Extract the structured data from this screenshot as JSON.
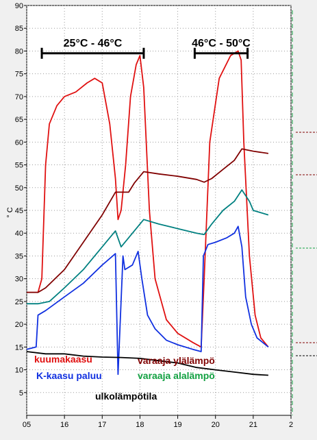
{
  "chart_data": {
    "type": "line",
    "ylabel": "° C",
    "xlim": [
      15,
      22
    ],
    "ylim": [
      0,
      90
    ],
    "x_ticks": [
      "05",
      "16",
      "17",
      "18",
      "19",
      "20",
      "21",
      "2"
    ],
    "y_ticks": [
      "5",
      "10",
      "15",
      "20",
      "25",
      "30",
      "35",
      "40",
      "45",
      "50",
      "55",
      "60",
      "65",
      "70",
      "75",
      "80",
      "85",
      "90"
    ],
    "grid": true,
    "annotations": [
      {
        "text": "25°C - 46°C",
        "from": 15.4,
        "to": 18.1,
        "y": 79.5
      },
      {
        "text": "46°C - 50°C",
        "from": 19.45,
        "to": 20.85,
        "y": 79.5
      }
    ],
    "series": [
      {
        "name": "kuumakaasu",
        "color": "#e01010",
        "points": [
          [
            15.0,
            27
          ],
          [
            15.3,
            27
          ],
          [
            15.4,
            30
          ],
          [
            15.5,
            55
          ],
          [
            15.6,
            64
          ],
          [
            15.8,
            68
          ],
          [
            16.0,
            70
          ],
          [
            16.3,
            71
          ],
          [
            16.6,
            73
          ],
          [
            16.8,
            74
          ],
          [
            17.0,
            73
          ],
          [
            17.2,
            64
          ],
          [
            17.35,
            52
          ],
          [
            17.42,
            43
          ],
          [
            17.5,
            45
          ],
          [
            17.62,
            55
          ],
          [
            17.75,
            70
          ],
          [
            17.9,
            77
          ],
          [
            18.0,
            79
          ],
          [
            18.1,
            72
          ],
          [
            18.25,
            45
          ],
          [
            18.4,
            30
          ],
          [
            18.7,
            21
          ],
          [
            19.0,
            18
          ],
          [
            19.4,
            16
          ],
          [
            19.62,
            15
          ],
          [
            19.7,
            30
          ],
          [
            19.85,
            60
          ],
          [
            20.1,
            74
          ],
          [
            20.4,
            79
          ],
          [
            20.6,
            80
          ],
          [
            20.68,
            78
          ],
          [
            20.75,
            60
          ],
          [
            20.9,
            35
          ],
          [
            21.05,
            22
          ],
          [
            21.2,
            17
          ],
          [
            21.4,
            15
          ]
        ]
      },
      {
        "name": "varaaja ylälämpö",
        "color": "#800000",
        "points": [
          [
            15.0,
            27
          ],
          [
            15.3,
            27
          ],
          [
            15.5,
            28
          ],
          [
            16.0,
            32
          ],
          [
            16.5,
            38
          ],
          [
            17.0,
            44
          ],
          [
            17.35,
            49
          ],
          [
            17.7,
            49
          ],
          [
            17.85,
            51
          ],
          [
            18.1,
            53.5
          ],
          [
            18.5,
            53
          ],
          [
            19.0,
            52.5
          ],
          [
            19.5,
            51.8
          ],
          [
            19.7,
            51.2
          ],
          [
            19.9,
            52
          ],
          [
            20.2,
            54
          ],
          [
            20.5,
            56
          ],
          [
            20.7,
            58.5
          ],
          [
            21.0,
            58
          ],
          [
            21.4,
            57.5
          ]
        ]
      },
      {
        "name": "varaaja alalämpö",
        "color": "#008080",
        "points": [
          [
            15.0,
            24.5
          ],
          [
            15.3,
            24.5
          ],
          [
            15.6,
            25
          ],
          [
            16.0,
            28
          ],
          [
            16.5,
            32
          ],
          [
            17.0,
            37
          ],
          [
            17.35,
            40.5
          ],
          [
            17.5,
            37
          ],
          [
            17.7,
            39
          ],
          [
            18.0,
            42
          ],
          [
            18.1,
            43
          ],
          [
            18.5,
            42
          ],
          [
            19.0,
            41
          ],
          [
            19.5,
            40
          ],
          [
            19.7,
            39.7
          ],
          [
            19.9,
            42
          ],
          [
            20.2,
            45
          ],
          [
            20.5,
            47
          ],
          [
            20.7,
            49.5
          ],
          [
            20.9,
            47
          ],
          [
            21.0,
            45
          ],
          [
            21.4,
            44
          ]
        ]
      },
      {
        "name": "K-kaasu paluu",
        "color": "#1030e0",
        "points": [
          [
            15.0,
            14.5
          ],
          [
            15.25,
            15
          ],
          [
            15.3,
            22
          ],
          [
            15.5,
            23
          ],
          [
            16.0,
            26
          ],
          [
            16.5,
            29
          ],
          [
            17.0,
            33
          ],
          [
            17.35,
            35.5
          ],
          [
            17.42,
            9
          ],
          [
            17.55,
            35
          ],
          [
            17.6,
            32
          ],
          [
            17.8,
            33
          ],
          [
            17.95,
            36
          ],
          [
            18.05,
            30
          ],
          [
            18.2,
            22
          ],
          [
            18.4,
            19
          ],
          [
            18.7,
            16.5
          ],
          [
            19.0,
            15.5
          ],
          [
            19.4,
            14.5
          ],
          [
            19.62,
            14
          ],
          [
            19.68,
            35
          ],
          [
            19.8,
            37.5
          ],
          [
            20.0,
            38
          ],
          [
            20.3,
            39
          ],
          [
            20.5,
            40
          ],
          [
            20.6,
            41.5
          ],
          [
            20.7,
            37
          ],
          [
            20.8,
            26
          ],
          [
            20.95,
            20
          ],
          [
            21.1,
            17
          ],
          [
            21.4,
            15
          ]
        ]
      },
      {
        "name": "ulkolämpötila",
        "color": "#000000",
        "points": [
          [
            15.0,
            14
          ],
          [
            15.5,
            13.5
          ],
          [
            16.0,
            13.5
          ],
          [
            16.5,
            13
          ],
          [
            17.0,
            12.8
          ],
          [
            17.5,
            12.7
          ],
          [
            18.0,
            12.5
          ],
          [
            18.5,
            12
          ],
          [
            19.0,
            11.5
          ],
          [
            19.5,
            10.5
          ],
          [
            20.0,
            10
          ],
          [
            20.5,
            9.5
          ],
          [
            21.0,
            9
          ],
          [
            21.4,
            8.8
          ]
        ]
      }
    ]
  }
}
